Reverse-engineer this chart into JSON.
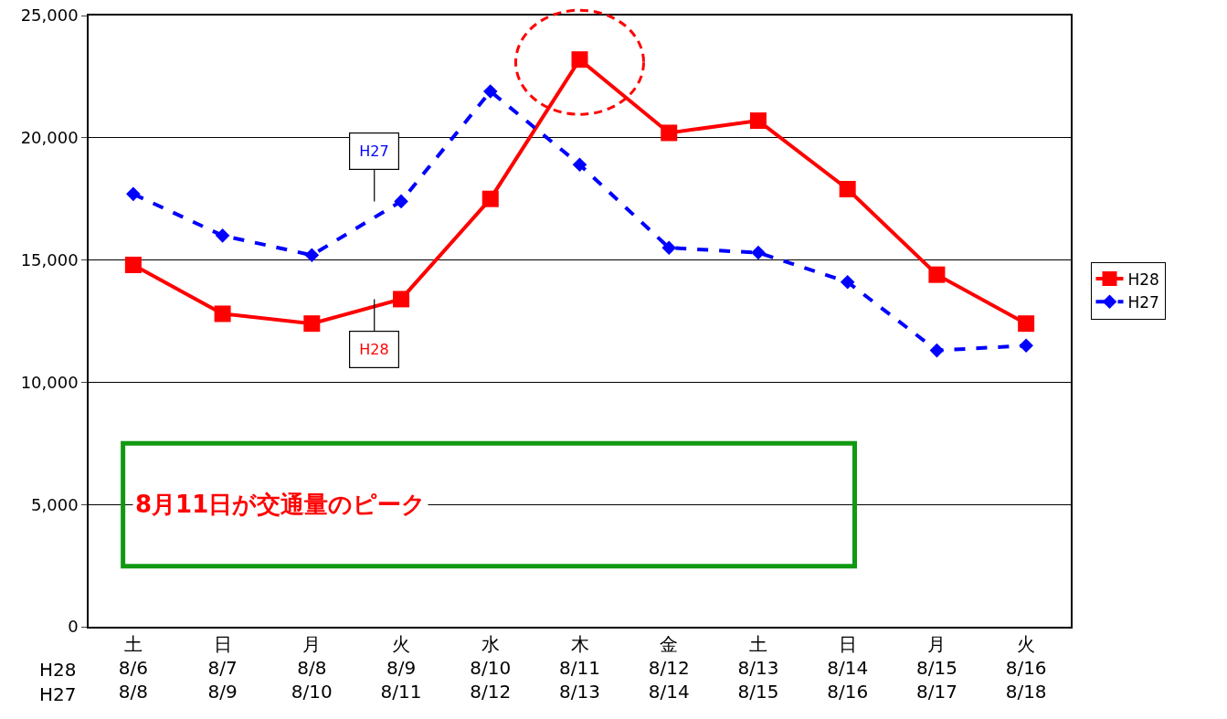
{
  "chart_data": {
    "type": "line",
    "categories": [
      "土\n8/6\n8/8",
      "日\n8/7\n8/9",
      "月\n8/8\n8/10",
      "火\n8/9\n8/11",
      "水\n8/10\n8/12",
      "木\n8/11\n8/13",
      "金\n8/12\n8/14",
      "土\n8/13\n8/15",
      "日\n8/14\n8/16",
      "月\n8/15\n8/17",
      "火\n8/16\n8/18"
    ],
    "series": [
      {
        "name": "H28",
        "color": "#ff0000",
        "marker": "square",
        "line_style": "solid",
        "values": [
          14800,
          12800,
          12400,
          13400,
          17500,
          23200,
          20200,
          20700,
          17900,
          14400,
          12400
        ]
      },
      {
        "name": "H27",
        "color": "#0000ff",
        "marker": "diamond",
        "line_style": "dashed",
        "values": [
          17700,
          16000,
          15200,
          17400,
          21900,
          18900,
          15500,
          15300,
          14100,
          11300,
          11500
        ]
      }
    ],
    "ylim": [
      0,
      25000
    ],
    "yticks": [
      {
        "value": 0,
        "label": "0"
      },
      {
        "value": 5000,
        "label": "5,000"
      },
      {
        "value": 10000,
        "label": "10,000"
      },
      {
        "value": 15000,
        "label": "15,000"
      },
      {
        "value": 20000,
        "label": "20,000"
      },
      {
        "value": 25000,
        "label": "25,000"
      }
    ],
    "grid": "y",
    "legend": "right",
    "annotations": [
      "8月11日が交通量のピーク",
      "H28",
      "H27",
      {
        "text": "H27",
        "x": "火\n8/9\n8/11",
        "y": 17400
      },
      {
        "text": "H28",
        "x": "火\n8/9\n8/11",
        "y": 13400
      }
    ]
  }
}
